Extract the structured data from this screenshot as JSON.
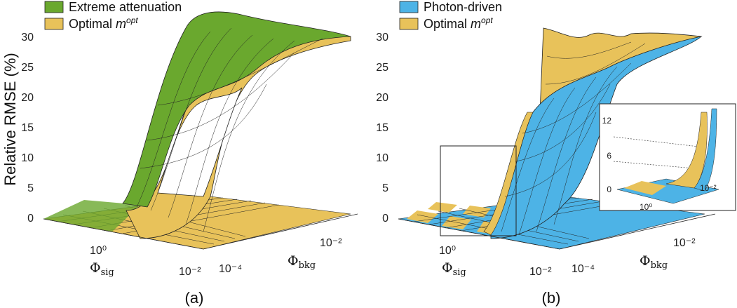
{
  "chart_data": [
    {
      "type": "surface",
      "panel_label": "(a)",
      "ylabel": "Relative RMSE (%)",
      "zlim": [
        0,
        30
      ],
      "z_ticks": [
        "0",
        "5",
        "10",
        "15",
        "20",
        "25",
        "30"
      ],
      "x_axis": {
        "label": "Φ",
        "sub": "sig",
        "ticks": [
          "10⁰",
          "10⁻²"
        ]
      },
      "y_axis": {
        "label": "Φ",
        "sub": "bkg",
        "ticks": [
          "10⁻⁴",
          "10⁻²"
        ]
      },
      "legend": [
        {
          "label": "Extreme attenuation",
          "color": "#6aa82e"
        },
        {
          "label_main": "Optimal ",
          "label_italic": "m",
          "label_sup": "opt",
          "color": "#e8c25a"
        }
      ],
      "series": [
        {
          "name": "Extreme attenuation",
          "color": "#6aa82e",
          "z_low": 0,
          "z_high": 30
        },
        {
          "name": "Optimal m^opt",
          "color": "#e8c25a",
          "z_low": 0,
          "z_high": 30
        }
      ]
    },
    {
      "type": "surface",
      "panel_label": "(b)",
      "zlim": [
        0,
        30
      ],
      "z_ticks": [
        "0",
        "5",
        "10",
        "15",
        "20",
        "25",
        "30"
      ],
      "x_axis": {
        "label": "Φ",
        "sub": "sig",
        "ticks": [
          "10⁰",
          "10⁻²"
        ]
      },
      "y_axis": {
        "label": "Φ",
        "sub": "bkg",
        "ticks": [
          "10⁻⁴",
          "10⁻²"
        ]
      },
      "legend": [
        {
          "label": "Photon-driven",
          "color": "#4db3e6"
        },
        {
          "label_main": "Optimal ",
          "label_italic": "m",
          "label_sup": "opt",
          "color": "#e8c25a"
        }
      ],
      "series": [
        {
          "name": "Photon-driven",
          "color": "#4db3e6",
          "z_low": 0,
          "z_high": 30
        },
        {
          "name": "Optimal m^opt",
          "color": "#e8c25a",
          "z_low": 0,
          "z_high": 30
        }
      ],
      "inset": {
        "z_ticks": [
          "0",
          "6",
          "12"
        ],
        "x_tick": "10⁰",
        "y_tick": "10⁻²"
      }
    }
  ]
}
